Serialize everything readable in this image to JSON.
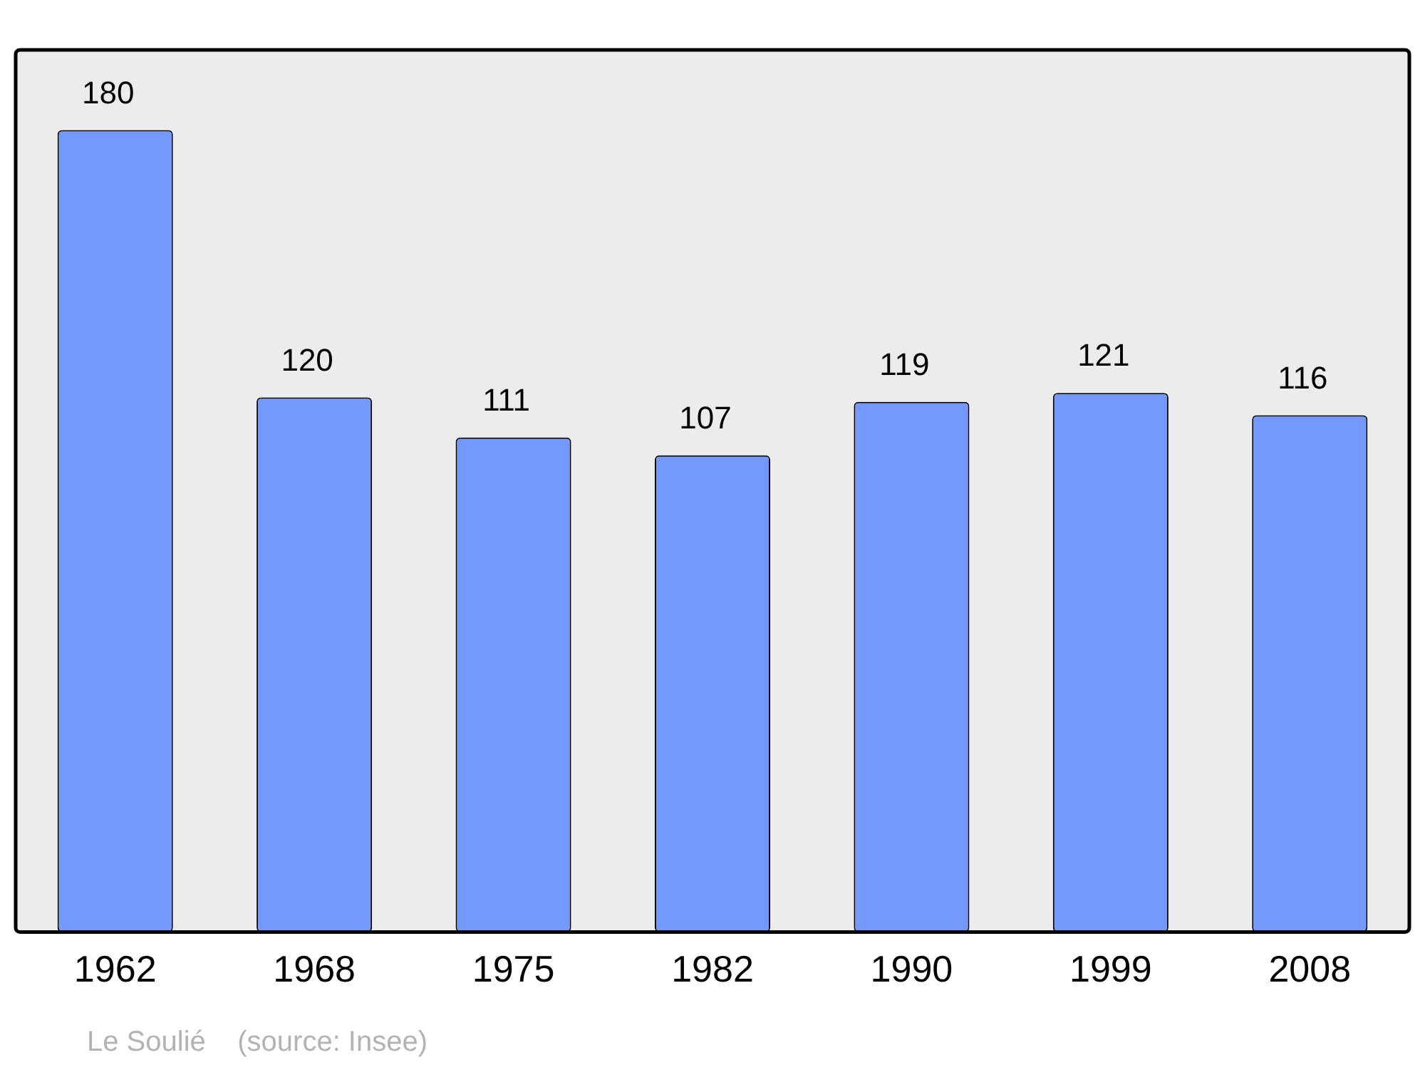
{
  "chart_data": {
    "type": "bar",
    "categories": [
      "1962",
      "1968",
      "1975",
      "1982",
      "1990",
      "1999",
      "2008"
    ],
    "values": [
      180,
      120,
      111,
      107,
      119,
      121,
      116
    ],
    "color": "#7399ff",
    "ylim": [
      0,
      198
    ],
    "tick_labels": "x",
    "data_labels": true,
    "grid": false,
    "legend": false,
    "annotations": [
      "Le Soulié    (source: Insee)"
    ]
  }
}
